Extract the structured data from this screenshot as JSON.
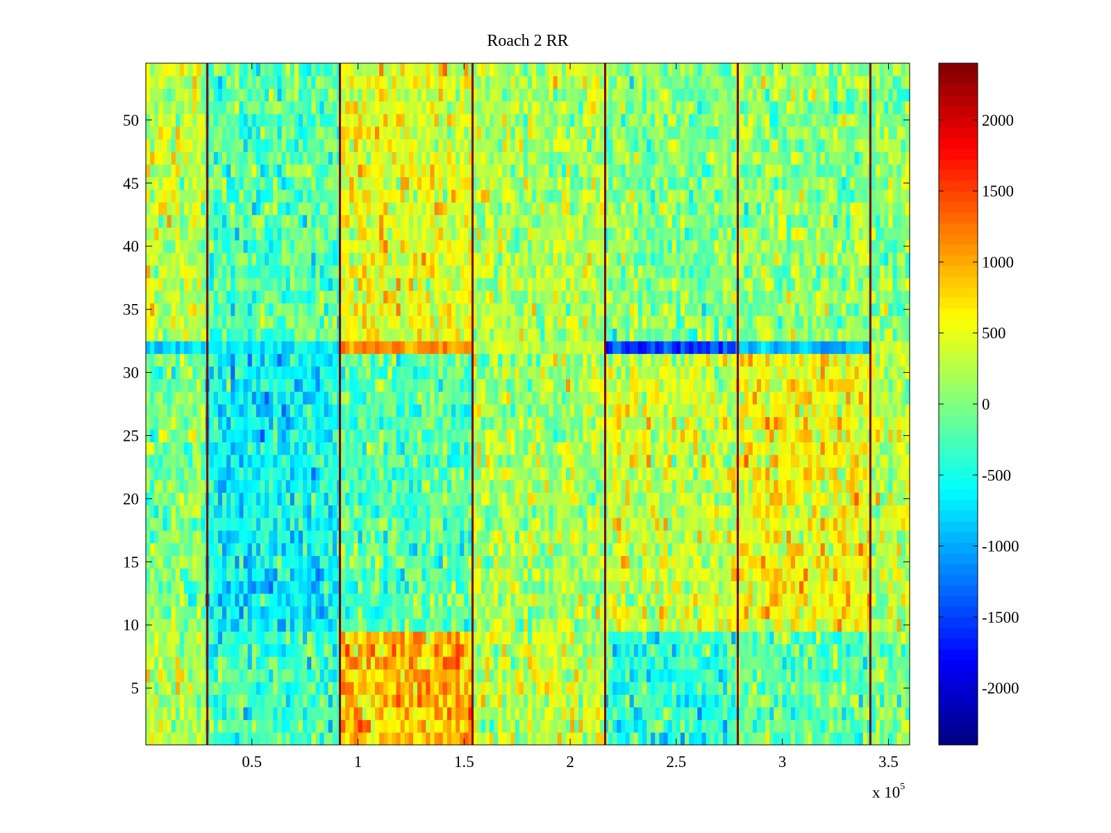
{
  "chart_data": {
    "type": "heatmap",
    "title": "Roach 2 RR",
    "xlabel": "",
    "ylabel": "",
    "x_multiplier_label": "x 10",
    "x_multiplier_exponent": "5",
    "xlim": [
      0,
      360000
    ],
    "ylim": [
      0.5,
      54.5
    ],
    "xticks": [
      0.5,
      1,
      1.5,
      2,
      2.5,
      3,
      3.5
    ],
    "xtick_labels": [
      "0.5",
      "1",
      "1.5",
      "2",
      "2.5",
      "3",
      "3.5"
    ],
    "yticks": [
      5,
      10,
      15,
      20,
      25,
      30,
      35,
      40,
      45,
      50
    ],
    "ytick_labels": [
      "5",
      "10",
      "15",
      "20",
      "25",
      "30",
      "35",
      "40",
      "45",
      "50"
    ],
    "colorbar": {
      "colormap": "jet",
      "clim": [
        -2400,
        2400
      ],
      "ticks": [
        -2000,
        -1500,
        -1000,
        -500,
        0,
        500,
        1000,
        1500,
        2000
      ],
      "tick_labels": [
        "-2000",
        "-1500",
        "-1000",
        "-500",
        "0",
        "500",
        "1000",
        "1500",
        "2000"
      ]
    },
    "rows": 54,
    "cols": 180,
    "vertical_spikes_x": [
      29000,
      91500,
      154000,
      216500,
      279000,
      341500
    ],
    "spike_value": 2400,
    "row_32_anomaly": [
      {
        "x_range": [
          0,
          91500
        ],
        "value": -700
      },
      {
        "x_range": [
          91500,
          154000
        ],
        "value": 1100
      },
      {
        "x_range": [
          154000,
          216500
        ],
        "value": 400
      },
      {
        "x_range": [
          216500,
          279000
        ],
        "value": -1500
      },
      {
        "x_range": [
          279000,
          341500
        ],
        "value": -900
      },
      {
        "x_range": [
          341500,
          360000
        ],
        "value": 500
      }
    ],
    "segment_means": [
      {
        "x_range": [
          0,
          29000
        ],
        "rows_1_9": 200,
        "rows_10_31": 0,
        "rows_33_54": 300
      },
      {
        "x_range": [
          29000,
          91500
        ],
        "rows_1_9": -300,
        "rows_10_31": -600,
        "rows_33_54": -200
      },
      {
        "x_range": [
          91500,
          154000
        ],
        "rows_1_9": 900,
        "rows_10_31": -200,
        "rows_33_54": 500
      },
      {
        "x_range": [
          154000,
          216500
        ],
        "rows_1_9": 300,
        "rows_10_31": 200,
        "rows_33_54": 200
      },
      {
        "x_range": [
          216500,
          279000
        ],
        "rows_1_9": -400,
        "rows_10_31": 350,
        "rows_33_54": 0
      },
      {
        "x_range": [
          279000,
          341500
        ],
        "rows_1_9": -150,
        "rows_10_31": 550,
        "rows_33_54": 100
      },
      {
        "x_range": [
          341500,
          360000
        ],
        "rows_1_9": 0,
        "rows_10_31": 300,
        "rows_33_54": 50
      }
    ],
    "noise_amplitude": 450,
    "grid": false
  }
}
